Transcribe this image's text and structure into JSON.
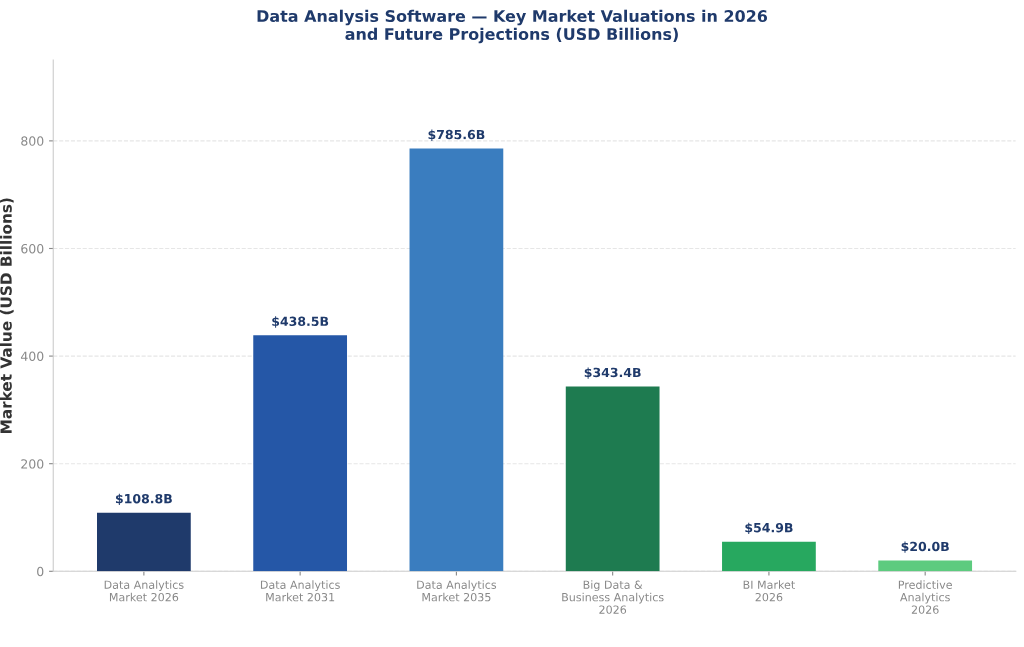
{
  "chart_data": {
    "type": "bar",
    "title": "Data Analysis Software — Key Market Valuations in 2026\nand Future Projections (USD Billions)",
    "ylabel": "Market Value (USD Billions)",
    "categories": [
      "Data Analytics\nMarket 2026",
      "Data Analytics\nMarket 2031",
      "Data Analytics\nMarket 2035",
      "Big Data &\nBusiness Analytics\n2026",
      "BI Market\n2026",
      "Predictive\nAnalytics\n2026"
    ],
    "values": [
      108.8,
      438.5,
      785.6,
      343.4,
      54.9,
      20.0
    ],
    "colors": [
      "#1f3a6b",
      "#2557a7",
      "#3a7dbf",
      "#1e7b50",
      "#27a85f",
      "#5dcb7f"
    ],
    "value_labels": [
      "$108.8B",
      "$438.5B",
      "$785.6B",
      "$343.4B",
      "$54.9B",
      "$20.0B"
    ],
    "ylim": [
      0,
      950
    ],
    "yticks": [
      0,
      200,
      400,
      600,
      800
    ],
    "grid": "y"
  }
}
